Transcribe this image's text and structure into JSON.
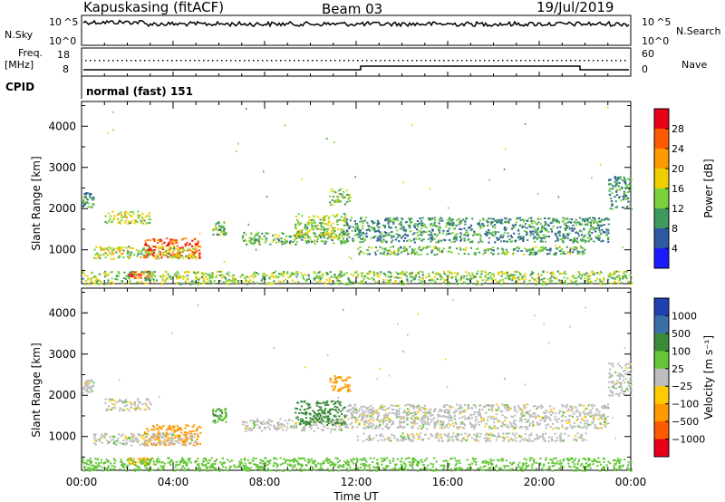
{
  "header": {
    "station": "Kapuskasing (fitACF)",
    "beam": "Beam 03",
    "date": "19/Jul/2019"
  },
  "top_panels": {
    "nsky_label": "N.Sky",
    "nsky_tick_hi": "10^5",
    "nsky_tick_lo": "10^0",
    "nsearch_label": "N.Search",
    "nsearch_tick_hi": "10^5",
    "nsearch_tick_lo": "10^0",
    "freq_label_1": "Freq.",
    "freq_label_2": "[MHz]",
    "freq_tick_hi": "18",
    "freq_tick_lo": "8",
    "nave_label": "Nave",
    "nave_tick_hi": "60",
    "nave_tick_lo": "0",
    "cpid_label": "CPID",
    "cpid_text": "normal (fast) 151"
  },
  "axes": {
    "ylabel": "Slant Range [km]",
    "xlabel": "Time UT",
    "yticks": [
      "4000",
      "3000",
      "2000",
      "1000"
    ],
    "xticks": [
      "00:00",
      "04:00",
      "08:00",
      "12:00",
      "16:00",
      "20:00",
      "00:00"
    ]
  },
  "colorbars": {
    "power": {
      "label": "Power [dB]",
      "ticks": [
        "28",
        "24",
        "20",
        "16",
        "12",
        "8",
        "4"
      ],
      "colors": [
        "#e8001a",
        "#ff5a00",
        "#ff9a00",
        "#f0cf00",
        "#7ad23c",
        "#3e9a5e",
        "#2d5aa0",
        "#1a1aff"
      ]
    },
    "velocity": {
      "label": "Velocity [m s⁻¹]",
      "ticks": [
        "1000",
        "500",
        "100",
        "25",
        "−25",
        "−100",
        "−500",
        "−1000"
      ],
      "colors": [
        "#2040b0",
        "#3a70a8",
        "#3a8a3a",
        "#63c637",
        "#bdbdbd",
        "#ffcc00",
        "#ff9900",
        "#ff5a00",
        "#e8001a"
      ]
    }
  },
  "chart_data": [
    {
      "type": "heatmap",
      "name": "Power [dB]",
      "xlabel": "Time UT",
      "ylabel": "Slant Range [km]",
      "xlim_hours": [
        0,
        24
      ],
      "ylim_km": [
        180,
        4600
      ],
      "colorbar_ticks": [
        4,
        8,
        12,
        16,
        20,
        24,
        28
      ],
      "echo_regions": [
        {
          "t": [
            0.0,
            0.5
          ],
          "r": [
            2050,
            2400
          ],
          "value": 10
        },
        {
          "t": [
            1.0,
            3.0
          ],
          "r": [
            1650,
            1950
          ],
          "value": 16
        },
        {
          "t": [
            2.7,
            5.2
          ],
          "r": [
            800,
            1300
          ],
          "value": 26
        },
        {
          "t": [
            0.5,
            5.0
          ],
          "r": [
            800,
            1100
          ],
          "value": 16
        },
        {
          "t": [
            2.0,
            3.0
          ],
          "r": [
            330,
            500
          ],
          "value": 26
        },
        {
          "t": [
            5.7,
            6.3
          ],
          "r": [
            1350,
            1700
          ],
          "value": 12
        },
        {
          "t": [
            7.0,
            11.5
          ],
          "r": [
            1150,
            1450
          ],
          "value": 12
        },
        {
          "t": [
            9.3,
            11.5
          ],
          "r": [
            1300,
            1900
          ],
          "value": 14
        },
        {
          "t": [
            10.8,
            11.7
          ],
          "r": [
            2100,
            2500
          ],
          "value": 14
        },
        {
          "t": [
            11.5,
            23.0
          ],
          "r": [
            1200,
            1800
          ],
          "value": 10
        },
        {
          "t": [
            12.0,
            22.0
          ],
          "r": [
            900,
            1100
          ],
          "value": 12
        },
        {
          "t": [
            23.0,
            24.0
          ],
          "r": [
            2000,
            2800
          ],
          "value": 10
        },
        {
          "t": [
            0.0,
            24.0
          ],
          "r": [
            180,
            500
          ],
          "value": 14
        }
      ]
    },
    {
      "type": "heatmap",
      "name": "Velocity [m s-1]",
      "xlabel": "Time UT",
      "ylabel": "Slant Range [km]",
      "xlim_hours": [
        0,
        24
      ],
      "ylim_km": [
        180,
        4600
      ],
      "colorbar_ticks": [
        1000,
        500,
        100,
        25,
        -25,
        -100,
        -500,
        -1000
      ],
      "echo_regions": [
        {
          "t": [
            0.0,
            0.5
          ],
          "r": [
            2050,
            2400
          ],
          "value": 0
        },
        {
          "t": [
            1.0,
            3.0
          ],
          "r": [
            1650,
            1950
          ],
          "value": 0
        },
        {
          "t": [
            2.7,
            5.2
          ],
          "r": [
            800,
            1300
          ],
          "value": -300
        },
        {
          "t": [
            0.5,
            5.0
          ],
          "r": [
            800,
            1100
          ],
          "value": 0
        },
        {
          "t": [
            2.0,
            3.0
          ],
          "r": [
            330,
            500
          ],
          "value": -100
        },
        {
          "t": [
            5.7,
            6.3
          ],
          "r": [
            1350,
            1700
          ],
          "value": 100
        },
        {
          "t": [
            7.0,
            11.5
          ],
          "r": [
            1150,
            1450
          ],
          "value": 0
        },
        {
          "t": [
            9.3,
            11.5
          ],
          "r": [
            1300,
            1900
          ],
          "value": 200
        },
        {
          "t": [
            10.8,
            11.7
          ],
          "r": [
            2100,
            2500
          ],
          "value": -200
        },
        {
          "t": [
            11.5,
            23.0
          ],
          "r": [
            1200,
            1800
          ],
          "value": 0
        },
        {
          "t": [
            12.0,
            22.0
          ],
          "r": [
            900,
            1100
          ],
          "value": 0
        },
        {
          "t": [
            23.0,
            24.0
          ],
          "r": [
            2000,
            2800
          ],
          "value": 0
        },
        {
          "t": [
            0.0,
            24.0
          ],
          "r": [
            180,
            500
          ],
          "value": 60
        }
      ]
    }
  ]
}
